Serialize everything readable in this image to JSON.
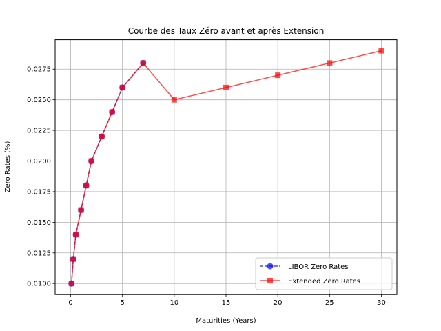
{
  "chart_data": {
    "type": "line",
    "title": "Courbe des Taux Zéro avant et après Extension",
    "xlabel": "Maturities (Years)",
    "ylabel": "Zero Rates (%)",
    "xlim": [
      -1.5,
      31.5
    ],
    "ylim": [
      0.0091,
      0.0299
    ],
    "xticks": [
      0,
      5,
      10,
      15,
      20,
      25,
      30
    ],
    "xtick_labels": [
      "0",
      "5",
      "10",
      "15",
      "20",
      "25",
      "30"
    ],
    "yticks": [
      0.01,
      0.0125,
      0.015,
      0.0175,
      0.02,
      0.0225,
      0.025,
      0.0275
    ],
    "ytick_labels": [
      "0.0100",
      "0.0125",
      "0.0150",
      "0.0175",
      "0.0200",
      "0.0225",
      "0.0250",
      "0.0275"
    ],
    "grid": true,
    "legend_position": "lower-right",
    "series": [
      {
        "name": "LIBOR Zero Rates",
        "color": "#0000ff",
        "marker": "circle",
        "linestyle": "dashed",
        "x": [
          0.08,
          0.25,
          0.5,
          1,
          1.5,
          2,
          3,
          4,
          5,
          7
        ],
        "y": [
          0.01,
          0.012,
          0.014,
          0.016,
          0.018,
          0.02,
          0.022,
          0.024,
          0.026,
          0.028
        ]
      },
      {
        "name": "Extended Zero Rates",
        "color": "#ff0000",
        "marker": "square",
        "linestyle": "solid",
        "x": [
          0.08,
          0.25,
          0.5,
          1,
          1.5,
          2,
          3,
          4,
          5,
          7,
          10,
          15,
          20,
          25,
          30
        ],
        "y": [
          0.01,
          0.012,
          0.014,
          0.016,
          0.018,
          0.02,
          0.022,
          0.024,
          0.026,
          0.028,
          0.025,
          0.026,
          0.027,
          0.028,
          0.029
        ]
      }
    ]
  }
}
